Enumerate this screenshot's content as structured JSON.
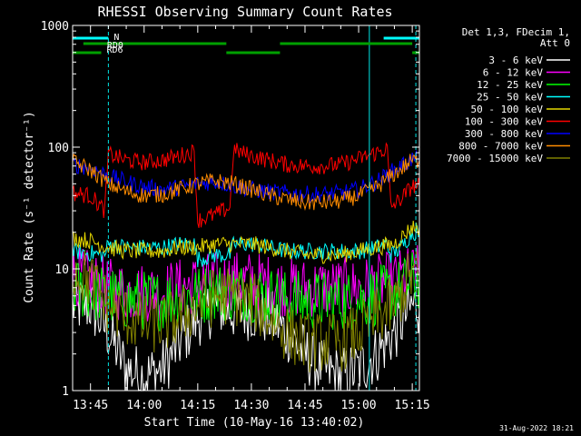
{
  "chart_data": {
    "type": "line",
    "title": "RHESSI Observing Summary Count Rates",
    "xlabel": "Start Time (10-May-16 13:40:02)",
    "ylabel": "Count Rate (s⁻¹ detector⁻¹)",
    "y_scale": "log",
    "ylim": [
      1,
      1000
    ],
    "xlim_minutes_after_start": [
      0,
      97
    ],
    "x_ticks": [
      {
        "label": "13:45",
        "minutes": 5
      },
      {
        "label": "14:00",
        "minutes": 20
      },
      {
        "label": "14:15",
        "minutes": 35
      },
      {
        "label": "14:30",
        "minutes": 50
      },
      {
        "label": "14:45",
        "minutes": 65
      },
      {
        "label": "15:00",
        "minutes": 80
      },
      {
        "label": "15:15",
        "minutes": 95
      }
    ],
    "y_ticks": [
      {
        "label": "1",
        "value": 1
      },
      {
        "label": "10",
        "value": 10
      },
      {
        "label": "100",
        "value": 100
      },
      {
        "label": "1000",
        "value": 1000
      }
    ],
    "legend_title": [
      "Det 1,3, FDecim 1,",
      "Att 0"
    ],
    "legend_position": "right",
    "flags": [
      {
        "label": "N",
        "color": "#00ffff",
        "segments": [
          [
            0,
            10
          ],
          [
            87,
            97
          ]
        ]
      },
      {
        "label": "RD0",
        "color": "#00a000",
        "segments": [
          [
            3,
            43
          ],
          [
            58,
            95
          ]
        ]
      },
      {
        "label": "RD6",
        "color": "#00a000",
        "segments": [
          [
            0,
            8
          ],
          [
            43,
            58
          ],
          [
            95,
            97
          ]
        ]
      }
    ],
    "vlines": [
      {
        "minutes": 0,
        "style": "solid"
      },
      {
        "minutes": 10,
        "style": "dashed"
      },
      {
        "minutes": 83,
        "style": "solid"
      },
      {
        "minutes": 96,
        "style": "dashed"
      }
    ],
    "series": [
      {
        "name": "3 - 6 keV",
        "color": "#ffffff",
        "values": [
          [
            0,
            5
          ],
          [
            5,
            5
          ],
          [
            10,
            3
          ],
          [
            15,
            1.5
          ],
          [
            20,
            1.3
          ],
          [
            25,
            1.5
          ],
          [
            30,
            2.5
          ],
          [
            35,
            4
          ],
          [
            40,
            5
          ],
          [
            45,
            4.5
          ],
          [
            50,
            4.5
          ],
          [
            55,
            4
          ],
          [
            60,
            3
          ],
          [
            65,
            2
          ],
          [
            70,
            1.5
          ],
          [
            75,
            1.3
          ],
          [
            80,
            1.5
          ],
          [
            85,
            2
          ],
          [
            90,
            3
          ],
          [
            95,
            5
          ],
          [
            97,
            5
          ]
        ]
      },
      {
        "name": "6 - 12 keV",
        "color": "#ff00ff",
        "values": [
          [
            0,
            9
          ],
          [
            5,
            8
          ],
          [
            10,
            7
          ],
          [
            15,
            6.5
          ],
          [
            20,
            6.5
          ],
          [
            25,
            6.5
          ],
          [
            30,
            7
          ],
          [
            35,
            7.5
          ],
          [
            40,
            8
          ],
          [
            45,
            8
          ],
          [
            50,
            8
          ],
          [
            55,
            7.5
          ],
          [
            60,
            7
          ],
          [
            65,
            7
          ],
          [
            70,
            7
          ],
          [
            75,
            7
          ],
          [
            80,
            7
          ],
          [
            85,
            7.5
          ],
          [
            90,
            8
          ],
          [
            95,
            9
          ],
          [
            97,
            9
          ]
        ]
      },
      {
        "name": "12 - 25 keV",
        "color": "#00ff00",
        "values": [
          [
            0,
            7
          ],
          [
            5,
            6.5
          ],
          [
            10,
            6
          ],
          [
            15,
            5.5
          ],
          [
            20,
            5.5
          ],
          [
            25,
            5.5
          ],
          [
            30,
            6
          ],
          [
            35,
            6
          ],
          [
            40,
            6.5
          ],
          [
            45,
            6.5
          ],
          [
            50,
            6.5
          ],
          [
            55,
            6
          ],
          [
            60,
            5.5
          ],
          [
            65,
            5.5
          ],
          [
            70,
            5.5
          ],
          [
            75,
            5.5
          ],
          [
            80,
            5.5
          ],
          [
            85,
            6
          ],
          [
            90,
            6.5
          ],
          [
            95,
            8
          ],
          [
            97,
            8
          ]
        ]
      },
      {
        "name": "25 - 50 keV",
        "color": "#00ffff",
        "values": [
          [
            0,
            14
          ],
          [
            9,
            13
          ],
          [
            10,
            16
          ],
          [
            15,
            15
          ],
          [
            20,
            15
          ],
          [
            25,
            15
          ],
          [
            30,
            16
          ],
          [
            34,
            16
          ],
          [
            35,
            12
          ],
          [
            40,
            13
          ],
          [
            44,
            13
          ],
          [
            45,
            16
          ],
          [
            50,
            16
          ],
          [
            55,
            15
          ],
          [
            60,
            14
          ],
          [
            65,
            14
          ],
          [
            70,
            14
          ],
          [
            75,
            14
          ],
          [
            80,
            14
          ],
          [
            85,
            15
          ],
          [
            88,
            16
          ],
          [
            89,
            13
          ],
          [
            92,
            15
          ],
          [
            95,
            20
          ],
          [
            97,
            20
          ]
        ]
      },
      {
        "name": "50 - 100 keV",
        "color": "#e6d700",
        "values": [
          [
            0,
            18
          ],
          [
            5,
            17
          ],
          [
            10,
            15
          ],
          [
            15,
            14
          ],
          [
            20,
            14
          ],
          [
            25,
            14
          ],
          [
            30,
            15
          ],
          [
            35,
            15
          ],
          [
            40,
            16
          ],
          [
            45,
            16
          ],
          [
            50,
            16
          ],
          [
            55,
            15
          ],
          [
            60,
            14
          ],
          [
            65,
            13
          ],
          [
            70,
            13
          ],
          [
            75,
            13
          ],
          [
            80,
            14
          ],
          [
            85,
            15
          ],
          [
            90,
            16
          ],
          [
            95,
            22
          ],
          [
            97,
            22
          ]
        ]
      },
      {
        "name": "100 - 300 keV",
        "color": "#ff0000",
        "values": [
          [
            0,
            42
          ],
          [
            5,
            40
          ],
          [
            9,
            30
          ],
          [
            10,
            88
          ],
          [
            15,
            78
          ],
          [
            20,
            75
          ],
          [
            25,
            78
          ],
          [
            30,
            85
          ],
          [
            34,
            92
          ],
          [
            35,
            25
          ],
          [
            40,
            28
          ],
          [
            44,
            32
          ],
          [
            45,
            95
          ],
          [
            50,
            85
          ],
          [
            55,
            78
          ],
          [
            60,
            72
          ],
          [
            65,
            70
          ],
          [
            70,
            70
          ],
          [
            75,
            72
          ],
          [
            80,
            80
          ],
          [
            85,
            90
          ],
          [
            88,
            97
          ],
          [
            89,
            32
          ],
          [
            92,
            38
          ],
          [
            95,
            48
          ],
          [
            97,
            48
          ]
        ]
      },
      {
        "name": "300 - 800 keV",
        "color": "#0000ff",
        "values": [
          [
            0,
            72
          ],
          [
            5,
            68
          ],
          [
            10,
            58
          ],
          [
            15,
            52
          ],
          [
            20,
            47
          ],
          [
            25,
            45
          ],
          [
            30,
            47
          ],
          [
            35,
            50
          ],
          [
            40,
            52
          ],
          [
            45,
            48
          ],
          [
            50,
            45
          ],
          [
            55,
            43
          ],
          [
            60,
            42
          ],
          [
            65,
            41
          ],
          [
            70,
            41
          ],
          [
            75,
            42
          ],
          [
            80,
            45
          ],
          [
            85,
            52
          ],
          [
            90,
            65
          ],
          [
            95,
            80
          ],
          [
            97,
            80
          ]
        ]
      },
      {
        "name": "800 - 7000 keV",
        "color": "#ff8c00",
        "values": [
          [
            0,
            76
          ],
          [
            5,
            65
          ],
          [
            10,
            50
          ],
          [
            15,
            43
          ],
          [
            20,
            40
          ],
          [
            25,
            41
          ],
          [
            30,
            45
          ],
          [
            35,
            50
          ],
          [
            40,
            53
          ],
          [
            45,
            50
          ],
          [
            50,
            45
          ],
          [
            55,
            40
          ],
          [
            60,
            37
          ],
          [
            65,
            35
          ],
          [
            70,
            35
          ],
          [
            75,
            36
          ],
          [
            80,
            40
          ],
          [
            85,
            47
          ],
          [
            90,
            60
          ],
          [
            95,
            78
          ],
          [
            97,
            78
          ]
        ]
      },
      {
        "name": "7000 - 15000 keV",
        "color": "#808000",
        "values": [
          [
            0,
            10
          ],
          [
            5,
            8
          ],
          [
            10,
            5
          ],
          [
            15,
            4
          ],
          [
            20,
            3.5
          ],
          [
            25,
            3.5
          ],
          [
            30,
            4
          ],
          [
            35,
            5
          ],
          [
            40,
            6
          ],
          [
            45,
            6
          ],
          [
            50,
            5.5
          ],
          [
            55,
            4
          ],
          [
            60,
            3
          ],
          [
            65,
            2.5
          ],
          [
            70,
            2.5
          ],
          [
            75,
            2.5
          ],
          [
            80,
            3
          ],
          [
            85,
            4
          ],
          [
            90,
            5
          ],
          [
            95,
            9
          ],
          [
            97,
            9
          ]
        ]
      }
    ]
  },
  "footer": {
    "timestamp": "31-Aug-2022 18:21"
  }
}
